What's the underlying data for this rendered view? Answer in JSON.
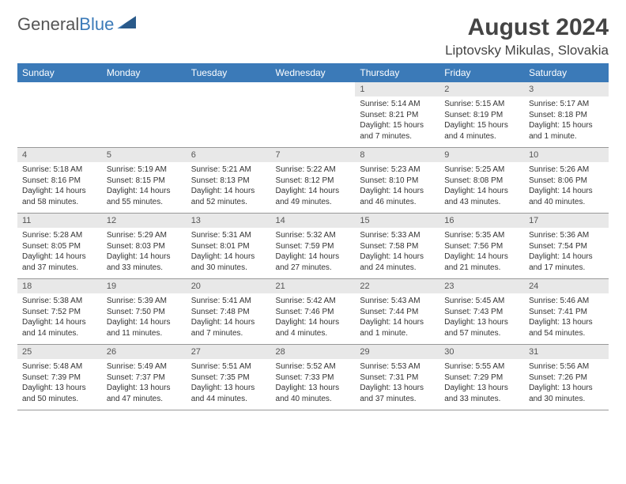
{
  "brand": {
    "part1": "General",
    "part2": "Blue"
  },
  "title": {
    "month": "August 2024",
    "location": "Liptovsky Mikulas, Slovakia"
  },
  "colors": {
    "header_bg": "#3b7ab8",
    "daynum_bg": "#e8e8e8",
    "border": "#999999",
    "text": "#333333"
  },
  "dayHeaders": [
    "Sunday",
    "Monday",
    "Tuesday",
    "Wednesday",
    "Thursday",
    "Friday",
    "Saturday"
  ],
  "weeks": [
    [
      {
        "empty": true
      },
      {
        "empty": true
      },
      {
        "empty": true
      },
      {
        "empty": true
      },
      {
        "n": "1",
        "sr": "Sunrise: 5:14 AM",
        "ss": "Sunset: 8:21 PM",
        "dl": "Daylight: 15 hours and 7 minutes."
      },
      {
        "n": "2",
        "sr": "Sunrise: 5:15 AM",
        "ss": "Sunset: 8:19 PM",
        "dl": "Daylight: 15 hours and 4 minutes."
      },
      {
        "n": "3",
        "sr": "Sunrise: 5:17 AM",
        "ss": "Sunset: 8:18 PM",
        "dl": "Daylight: 15 hours and 1 minute."
      }
    ],
    [
      {
        "n": "4",
        "sr": "Sunrise: 5:18 AM",
        "ss": "Sunset: 8:16 PM",
        "dl": "Daylight: 14 hours and 58 minutes."
      },
      {
        "n": "5",
        "sr": "Sunrise: 5:19 AM",
        "ss": "Sunset: 8:15 PM",
        "dl": "Daylight: 14 hours and 55 minutes."
      },
      {
        "n": "6",
        "sr": "Sunrise: 5:21 AM",
        "ss": "Sunset: 8:13 PM",
        "dl": "Daylight: 14 hours and 52 minutes."
      },
      {
        "n": "7",
        "sr": "Sunrise: 5:22 AM",
        "ss": "Sunset: 8:12 PM",
        "dl": "Daylight: 14 hours and 49 minutes."
      },
      {
        "n": "8",
        "sr": "Sunrise: 5:23 AM",
        "ss": "Sunset: 8:10 PM",
        "dl": "Daylight: 14 hours and 46 minutes."
      },
      {
        "n": "9",
        "sr": "Sunrise: 5:25 AM",
        "ss": "Sunset: 8:08 PM",
        "dl": "Daylight: 14 hours and 43 minutes."
      },
      {
        "n": "10",
        "sr": "Sunrise: 5:26 AM",
        "ss": "Sunset: 8:06 PM",
        "dl": "Daylight: 14 hours and 40 minutes."
      }
    ],
    [
      {
        "n": "11",
        "sr": "Sunrise: 5:28 AM",
        "ss": "Sunset: 8:05 PM",
        "dl": "Daylight: 14 hours and 37 minutes."
      },
      {
        "n": "12",
        "sr": "Sunrise: 5:29 AM",
        "ss": "Sunset: 8:03 PM",
        "dl": "Daylight: 14 hours and 33 minutes."
      },
      {
        "n": "13",
        "sr": "Sunrise: 5:31 AM",
        "ss": "Sunset: 8:01 PM",
        "dl": "Daylight: 14 hours and 30 minutes."
      },
      {
        "n": "14",
        "sr": "Sunrise: 5:32 AM",
        "ss": "Sunset: 7:59 PM",
        "dl": "Daylight: 14 hours and 27 minutes."
      },
      {
        "n": "15",
        "sr": "Sunrise: 5:33 AM",
        "ss": "Sunset: 7:58 PM",
        "dl": "Daylight: 14 hours and 24 minutes."
      },
      {
        "n": "16",
        "sr": "Sunrise: 5:35 AM",
        "ss": "Sunset: 7:56 PM",
        "dl": "Daylight: 14 hours and 21 minutes."
      },
      {
        "n": "17",
        "sr": "Sunrise: 5:36 AM",
        "ss": "Sunset: 7:54 PM",
        "dl": "Daylight: 14 hours and 17 minutes."
      }
    ],
    [
      {
        "n": "18",
        "sr": "Sunrise: 5:38 AM",
        "ss": "Sunset: 7:52 PM",
        "dl": "Daylight: 14 hours and 14 minutes."
      },
      {
        "n": "19",
        "sr": "Sunrise: 5:39 AM",
        "ss": "Sunset: 7:50 PM",
        "dl": "Daylight: 14 hours and 11 minutes."
      },
      {
        "n": "20",
        "sr": "Sunrise: 5:41 AM",
        "ss": "Sunset: 7:48 PM",
        "dl": "Daylight: 14 hours and 7 minutes."
      },
      {
        "n": "21",
        "sr": "Sunrise: 5:42 AM",
        "ss": "Sunset: 7:46 PM",
        "dl": "Daylight: 14 hours and 4 minutes."
      },
      {
        "n": "22",
        "sr": "Sunrise: 5:43 AM",
        "ss": "Sunset: 7:44 PM",
        "dl": "Daylight: 14 hours and 1 minute."
      },
      {
        "n": "23",
        "sr": "Sunrise: 5:45 AM",
        "ss": "Sunset: 7:43 PM",
        "dl": "Daylight: 13 hours and 57 minutes."
      },
      {
        "n": "24",
        "sr": "Sunrise: 5:46 AM",
        "ss": "Sunset: 7:41 PM",
        "dl": "Daylight: 13 hours and 54 minutes."
      }
    ],
    [
      {
        "n": "25",
        "sr": "Sunrise: 5:48 AM",
        "ss": "Sunset: 7:39 PM",
        "dl": "Daylight: 13 hours and 50 minutes."
      },
      {
        "n": "26",
        "sr": "Sunrise: 5:49 AM",
        "ss": "Sunset: 7:37 PM",
        "dl": "Daylight: 13 hours and 47 minutes."
      },
      {
        "n": "27",
        "sr": "Sunrise: 5:51 AM",
        "ss": "Sunset: 7:35 PM",
        "dl": "Daylight: 13 hours and 44 minutes."
      },
      {
        "n": "28",
        "sr": "Sunrise: 5:52 AM",
        "ss": "Sunset: 7:33 PM",
        "dl": "Daylight: 13 hours and 40 minutes."
      },
      {
        "n": "29",
        "sr": "Sunrise: 5:53 AM",
        "ss": "Sunset: 7:31 PM",
        "dl": "Daylight: 13 hours and 37 minutes."
      },
      {
        "n": "30",
        "sr": "Sunrise: 5:55 AM",
        "ss": "Sunset: 7:29 PM",
        "dl": "Daylight: 13 hours and 33 minutes."
      },
      {
        "n": "31",
        "sr": "Sunrise: 5:56 AM",
        "ss": "Sunset: 7:26 PM",
        "dl": "Daylight: 13 hours and 30 minutes."
      }
    ]
  ]
}
